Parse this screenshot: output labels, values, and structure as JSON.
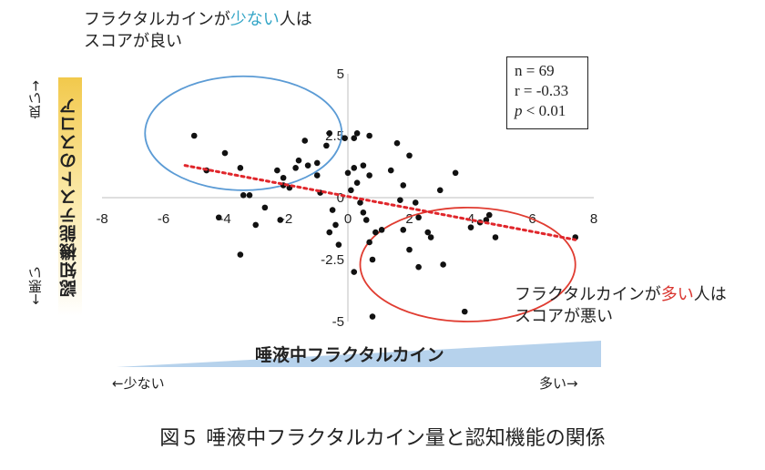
{
  "chart_data": {
    "type": "scatter",
    "title": "",
    "xlim": [
      -8,
      8
    ],
    "ylim": [
      -5,
      5
    ],
    "x_ticks": [
      "-8",
      "-6",
      "-4",
      "-2",
      "0",
      "2",
      "4",
      "6",
      "8"
    ],
    "y_ticks": [
      "5",
      "2.5",
      "0",
      "-2.5",
      "-5"
    ],
    "points": [
      [
        -5.0,
        2.5
      ],
      [
        -4.6,
        1.1
      ],
      [
        -4.0,
        1.8
      ],
      [
        -3.5,
        1.2
      ],
      [
        -3.4,
        0.1
      ],
      [
        -3.2,
        0.1
      ],
      [
        -3.5,
        -2.3
      ],
      [
        -3.0,
        -1.1
      ],
      [
        -2.7,
        -0.4
      ],
      [
        -2.3,
        1.1
      ],
      [
        -2.2,
        -0.9
      ],
      [
        -2.1,
        0.8
      ],
      [
        -2.1,
        0.5
      ],
      [
        -1.7,
        1.2
      ],
      [
        -1.9,
        0.4
      ],
      [
        -1.6,
        1.5
      ],
      [
        -1.4,
        2.3
      ],
      [
        -1.3,
        1.3
      ],
      [
        -1.0,
        1.4
      ],
      [
        -1.0,
        0.9
      ],
      [
        -0.9,
        0.2
      ],
      [
        -0.7,
        2.1
      ],
      [
        -0.6,
        2.6
      ],
      [
        -0.5,
        -0.5
      ],
      [
        -0.4,
        -1.1
      ],
      [
        -0.6,
        -1.4
      ],
      [
        -0.3,
        -1.9
      ],
      [
        -0.1,
        2.4
      ],
      [
        0.0,
        1.0
      ],
      [
        0.1,
        0.3
      ],
      [
        0.2,
        2.4
      ],
      [
        0.2,
        1.2
      ],
      [
        0.3,
        2.6
      ],
      [
        0.3,
        0.6
      ],
      [
        0.4,
        -0.2
      ],
      [
        0.5,
        1.3
      ],
      [
        0.5,
        -0.6
      ],
      [
        0.6,
        -0.9
      ],
      [
        0.7,
        2.5
      ],
      [
        0.7,
        0.9
      ],
      [
        0.7,
        -1.8
      ],
      [
        0.8,
        -2.5
      ],
      [
        0.8,
        -4.8
      ],
      [
        0.2,
        -3.0
      ],
      [
        0.9,
        -1.4
      ],
      [
        1.1,
        -1.3
      ],
      [
        1.4,
        1.1
      ],
      [
        1.6,
        2.2
      ],
      [
        1.8,
        0.5
      ],
      [
        1.7,
        -0.1
      ],
      [
        1.8,
        -1.3
      ],
      [
        2.0,
        -2.1
      ],
      [
        2.2,
        -0.2
      ],
      [
        2.0,
        1.7
      ],
      [
        2.3,
        -0.8
      ],
      [
        2.6,
        -1.4
      ],
      [
        2.7,
        -1.6
      ],
      [
        2.3,
        -2.8
      ],
      [
        3.0,
        0.3
      ],
      [
        3.1,
        -2.7
      ],
      [
        3.5,
        1.0
      ],
      [
        3.8,
        -4.6
      ],
      [
        4.0,
        -1.2
      ],
      [
        4.3,
        -1.0
      ],
      [
        4.6,
        -0.7
      ],
      [
        4.5,
        -0.9
      ],
      [
        4.8,
        -1.6
      ],
      [
        7.4,
        -1.6
      ],
      [
        -4.2,
        -0.8
      ]
    ],
    "trendline": {
      "x": [
        -5.3,
        7.4
      ],
      "y": [
        1.3,
        -1.7
      ]
    },
    "ellipses": [
      {
        "cx": -3.4,
        "cy": 2.6,
        "rx": 3.2,
        "ry": 2.3,
        "color": "#5b9bd5"
      },
      {
        "cx": 3.9,
        "cy": -2.7,
        "rx": 3.5,
        "ry": 2.3,
        "color": "#e03c31"
      }
    ],
    "ylabel": "認知機能テストのスコア",
    "xlabel": "唾液中フラクタルカイン",
    "colors": {
      "points": "#111111",
      "trend": "#e0262b",
      "axis": "#bfbfbf",
      "ylabel_bar": "#f2c94c",
      "xlabel_bar": "#9dc3e6"
    }
  },
  "annotations": {
    "top_left_1": "フラクタルカインが",
    "top_left_2": "少ない",
    "top_left_3": "人は",
    "top_left_4": "スコアが良い",
    "bottom_right_1": "フラクタルカインが",
    "bottom_right_2": "多い",
    "bottom_right_3": "人は",
    "bottom_right_4": "スコアが悪い"
  },
  "stats": {
    "n": "n = 69",
    "r": "r = -0.33",
    "p_sym": "p",
    "p_rest": " < 0.01"
  },
  "side_labels": {
    "good": "良い→",
    "bad": "←悪い"
  },
  "x_direction": {
    "left": "←少ない",
    "right": "多い→"
  },
  "caption": "図５ 唾液中フラクタルカイン量と認知機能の関係"
}
